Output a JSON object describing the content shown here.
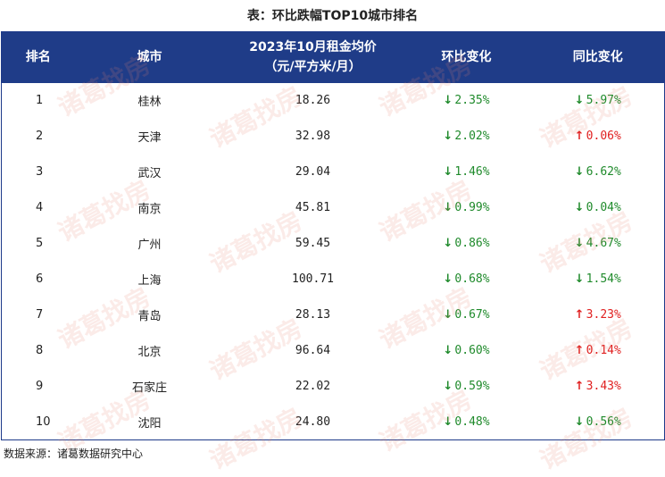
{
  "caption": "表：环比跌幅TOP10城市排名",
  "headers": {
    "rank": "排名",
    "city": "城市",
    "rent_line1": "2023年10月租金均价",
    "rent_line2": "（元/平方米/月）",
    "mom": "环比变化",
    "yoy": "同比变化"
  },
  "rows": [
    {
      "rank": "1",
      "city": "桂林",
      "rent": "18.26",
      "mom": "2.35%",
      "mom_dir": "down",
      "yoy": "5.97%",
      "yoy_dir": "down"
    },
    {
      "rank": "2",
      "city": "天津",
      "rent": "32.98",
      "mom": "2.02%",
      "mom_dir": "down",
      "yoy": "0.06%",
      "yoy_dir": "up"
    },
    {
      "rank": "3",
      "city": "武汉",
      "rent": "29.04",
      "mom": "1.46%",
      "mom_dir": "down",
      "yoy": "6.62%",
      "yoy_dir": "down"
    },
    {
      "rank": "4",
      "city": "南京",
      "rent": "45.81",
      "mom": "0.99%",
      "mom_dir": "down",
      "yoy": "0.04%",
      "yoy_dir": "down"
    },
    {
      "rank": "5",
      "city": "广州",
      "rent": "59.45",
      "mom": "0.86%",
      "mom_dir": "down",
      "yoy": "4.67%",
      "yoy_dir": "down"
    },
    {
      "rank": "6",
      "city": "上海",
      "rent": "100.71",
      "mom": "0.68%",
      "mom_dir": "down",
      "yoy": "1.54%",
      "yoy_dir": "down"
    },
    {
      "rank": "7",
      "city": "青岛",
      "rent": "28.13",
      "mom": "0.67%",
      "mom_dir": "down",
      "yoy": "3.23%",
      "yoy_dir": "up"
    },
    {
      "rank": "8",
      "city": "北京",
      "rent": "96.64",
      "mom": "0.60%",
      "mom_dir": "down",
      "yoy": "0.14%",
      "yoy_dir": "up"
    },
    {
      "rank": "9",
      "city": "石家庄",
      "rent": "22.02",
      "mom": "0.59%",
      "mom_dir": "down",
      "yoy": "3.43%",
      "yoy_dir": "up"
    },
    {
      "rank": "10",
      "city": "沈阳",
      "rent": "24.80",
      "mom": "0.48%",
      "mom_dir": "down",
      "yoy": "0.56%",
      "yoy_dir": "down"
    }
  ],
  "arrows": {
    "down": "↓",
    "up": "↑"
  },
  "colors": {
    "header_bg": "#1f3c88",
    "down": "#1f8a2b",
    "up": "#e02020"
  },
  "watermark": "诸葛找房",
  "source": "数据来源：诸葛数据研究中心"
}
